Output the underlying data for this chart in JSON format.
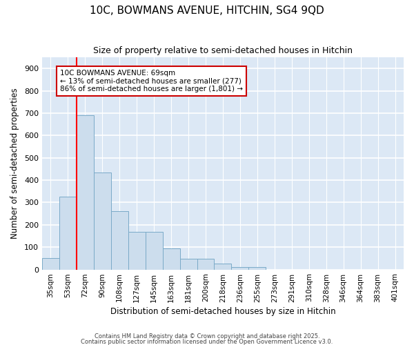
{
  "title_line1": "10C, BOWMANS AVENUE, HITCHIN, SG4 9QD",
  "title_line2": "Size of property relative to semi-detached houses in Hitchin",
  "xlabel": "Distribution of semi-detached houses by size in Hitchin",
  "ylabel": "Number of semi-detached properties",
  "categories": [
    "35sqm",
    "53sqm",
    "72sqm",
    "90sqm",
    "108sqm",
    "127sqm",
    "145sqm",
    "163sqm",
    "181sqm",
    "200sqm",
    "218sqm",
    "236sqm",
    "255sqm",
    "273sqm",
    "291sqm",
    "310sqm",
    "328sqm",
    "346sqm",
    "364sqm",
    "383sqm",
    "401sqm"
  ],
  "values": [
    50,
    325,
    690,
    435,
    260,
    168,
    168,
    95,
    47,
    47,
    28,
    12,
    10,
    0,
    0,
    0,
    0,
    0,
    0,
    0,
    0
  ],
  "bar_color": "#ccdded",
  "bar_edge_color": "#7aaac8",
  "red_line_index": 2,
  "annotation_title": "10C BOWMANS AVENUE: 69sqm",
  "annotation_line2": "← 13% of semi-detached houses are smaller (277)",
  "annotation_line3": "86% of semi-detached houses are larger (1,801) →",
  "annotation_box_color": "#ffffff",
  "annotation_box_edge": "#cc0000",
  "ylim": [
    0,
    950
  ],
  "yticks": [
    0,
    100,
    200,
    300,
    400,
    500,
    600,
    700,
    800,
    900
  ],
  "plot_bg_color": "#dce8f5",
  "fig_bg_color": "#ffffff",
  "grid_color": "#ffffff",
  "footer_line1": "Contains HM Land Registry data © Crown copyright and database right 2025.",
  "footer_line2": "Contains public sector information licensed under the Open Government Licence v3.0."
}
